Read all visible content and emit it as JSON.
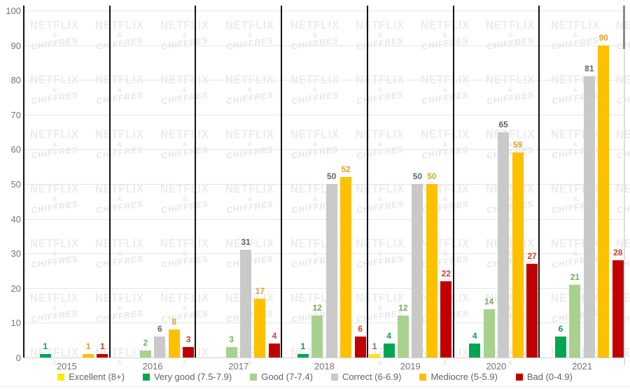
{
  "watermark": {
    "line1": "NETFLIX",
    "line2": "&",
    "line3": "CHIFFRES"
  },
  "chart_data": {
    "type": "bar",
    "title": "",
    "xlabel": "",
    "ylabel": "",
    "categories": [
      "2015",
      "2016",
      "2017",
      "2018",
      "2019",
      "2020",
      "2021"
    ],
    "series": [
      {
        "key": "excellent",
        "name": "Excellent (8+)",
        "color": "#ffe900",
        "label_color": "#757575",
        "values": [
          0,
          0,
          0,
          0,
          1,
          0,
          0
        ]
      },
      {
        "key": "very-good",
        "name": "Very good (7.5-7.9)",
        "color": "#00a651",
        "label_color": "#00a651",
        "values": [
          1,
          0,
          0,
          1,
          4,
          4,
          6
        ]
      },
      {
        "key": "good",
        "name": "Good (7-7.4)",
        "color": "#a9d18e",
        "label_color": "#7fa85f",
        "values": [
          0,
          2,
          3,
          12,
          12,
          14,
          21
        ]
      },
      {
        "key": "correct",
        "name": "Correct (6-6.9)",
        "color": "#c9c9c9",
        "label_color": "#636363",
        "values": [
          0,
          6,
          31,
          50,
          50,
          65,
          81
        ]
      },
      {
        "key": "mediocre",
        "name": "Mediocre (5-5.9)",
        "color": "#ffc000",
        "label_color": "#dfa126",
        "values": [
          1,
          8,
          17,
          52,
          50,
          59,
          90
        ]
      },
      {
        "key": "bad",
        "name": "Bad (0-4.9)",
        "color": "#c00000",
        "label_color": "#cc4125",
        "values": [
          1,
          3,
          4,
          6,
          22,
          27,
          28
        ]
      }
    ],
    "ylim": [
      0,
      100
    ],
    "ytick_step": 10,
    "yticks": [
      0,
      10,
      20,
      30,
      40,
      50,
      60,
      70,
      80,
      90,
      100
    ],
    "grid": true,
    "legend_position": "bottom",
    "show_value_labels_above_bars": true
  },
  "colors": {
    "background": "#ffffff",
    "gridline": "#e6e6e6",
    "group_separator": "#111111",
    "axis_text": "#757575",
    "legend_text": "#5f6368",
    "watermark_text": "#ebebeb"
  }
}
